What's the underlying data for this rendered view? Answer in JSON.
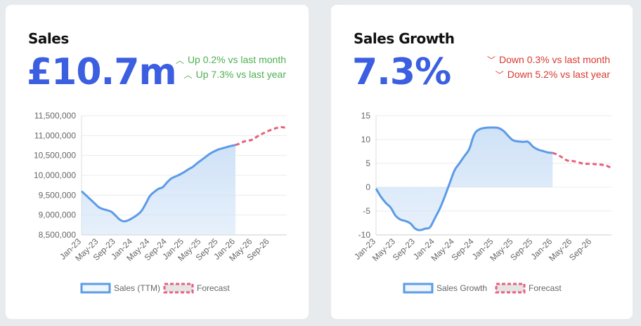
{
  "colors": {
    "background": "#e8ebee",
    "kpi": "#3b5fe0",
    "up": "#4caf50",
    "down": "#d9392f",
    "series": "#5b9be6",
    "fill": "#cfe2f7",
    "forecast": "#e8607a"
  },
  "cards": [
    {
      "title": "Sales",
      "kpi": "£10.7m",
      "deltas": [
        {
          "direction": "up",
          "icon": "chevron-up-icon",
          "text": "Up 0.2% vs last month"
        },
        {
          "direction": "up",
          "icon": "chevron-up-icon",
          "text": "Up 7.3% vs last year"
        }
      ]
    },
    {
      "title": "Sales Growth",
      "kpi": "7.3%",
      "deltas": [
        {
          "direction": "down",
          "icon": "chevron-down-icon",
          "text": "Down 0.3% vs last month"
        },
        {
          "direction": "down",
          "icon": "chevron-down-icon",
          "text": "Down 5.2% vs last year"
        }
      ]
    }
  ],
  "chart_data": [
    {
      "type": "line",
      "x_tick_labels": [
        "Jan-23",
        "May-23",
        "Sep-23",
        "Jan-24",
        "May-24",
        "Sep-24",
        "Jan-25",
        "May-25",
        "Sep-25",
        "Jan-26",
        "May-26",
        "Sep-26"
      ],
      "x_start": "Jan-23",
      "x_interval": "month",
      "ylim": [
        8500000,
        11500000
      ],
      "yticks": [
        8500000,
        9000000,
        9500000,
        10000000,
        10500000,
        11000000,
        11500000
      ],
      "ytick_labels": [
        "8,500,000",
        "9,000,000",
        "9,500,000",
        "10,000,000",
        "10,500,000",
        "11,000,000",
        "11,500,000"
      ],
      "grid": true,
      "legend_position": "bottom",
      "series": [
        {
          "name": "Sales (TTM)",
          "style": "solid-filled",
          "start": "Jan-23",
          "values": [
            9600000,
            9500000,
            9400000,
            9300000,
            9200000,
            9150000,
            9120000,
            9080000,
            8980000,
            8880000,
            8840000,
            8870000,
            8930000,
            9000000,
            9100000,
            9280000,
            9480000,
            9580000,
            9660000,
            9700000,
            9820000,
            9920000,
            9970000,
            10020000,
            10080000,
            10150000,
            10210000,
            10300000,
            10380000,
            10460000,
            10540000,
            10600000,
            10650000,
            10680000,
            10710000,
            10740000,
            10760000
          ]
        },
        {
          "name": "Forecast",
          "style": "dashed",
          "start": "Jan-26",
          "values": [
            10760000,
            10800000,
            10850000,
            10870000,
            10900000,
            10970000,
            11030000,
            11080000,
            11130000,
            11170000,
            11200000,
            11210000,
            11180000
          ]
        }
      ]
    },
    {
      "type": "line",
      "x_tick_labels": [
        "Jan-23",
        "May-23",
        "Sep-23",
        "Jan-24",
        "May-24",
        "Sep-24",
        "Jan-25",
        "May-25",
        "Sep-25",
        "Jan-26",
        "May-26",
        "Sep-26"
      ],
      "x_start": "Jan-23",
      "x_interval": "month",
      "ylim": [
        -10,
        15
      ],
      "yticks": [
        -10,
        -5,
        0,
        5,
        10,
        15
      ],
      "ytick_labels": [
        "-10",
        "-5",
        "0",
        "5",
        "10",
        "15"
      ],
      "grid": true,
      "legend_position": "bottom",
      "series": [
        {
          "name": "Sales Growth",
          "style": "solid-filled",
          "start": "Jan-23",
          "values": [
            -0.3,
            -2,
            -3.3,
            -4.3,
            -6,
            -6.8,
            -7.1,
            -7.6,
            -8.7,
            -9,
            -8.7,
            -8.4,
            -6.5,
            -4.5,
            -2,
            0.8,
            3.5,
            5,
            6.5,
            8,
            11,
            12.1,
            12.4,
            12.5,
            12.5,
            12.4,
            11.8,
            10.7,
            9.8,
            9.6,
            9.5,
            9.5,
            8.5,
            7.9,
            7.6,
            7.3,
            7.2
          ]
        },
        {
          "name": "Forecast",
          "style": "dashed",
          "start": "Jan-26",
          "values": [
            7.2,
            6.8,
            6.2,
            5.6,
            5.5,
            5.3,
            5.0,
            4.9,
            4.9,
            4.8,
            4.7,
            4.5,
            4.0
          ]
        }
      ]
    }
  ]
}
